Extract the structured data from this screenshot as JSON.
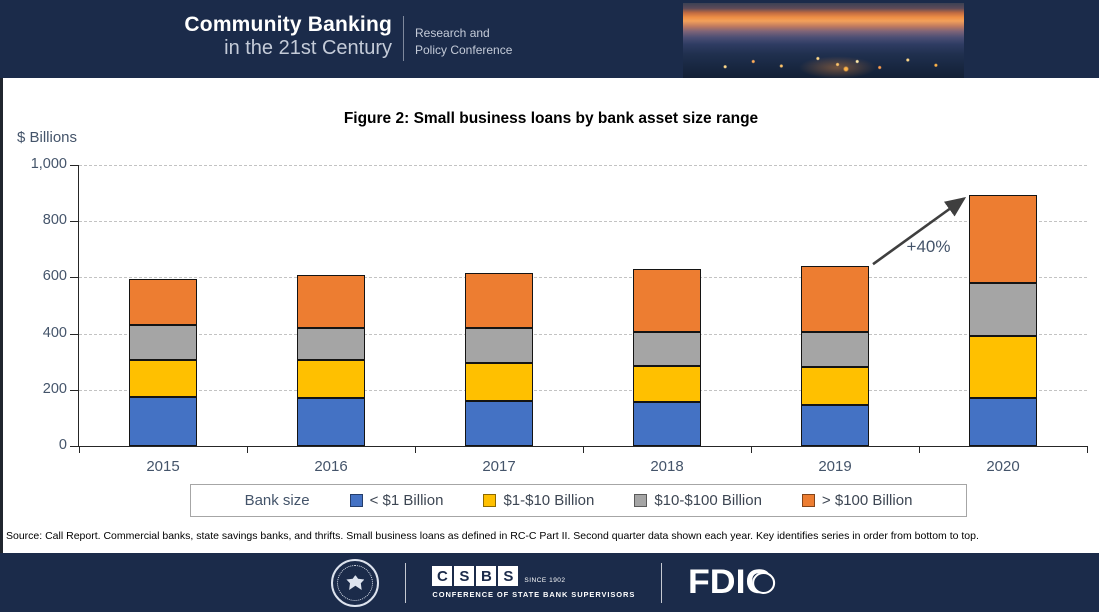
{
  "header": {
    "brand_title": "Community Banking",
    "brand_subtitle": "in the 21st Century",
    "conference_line1": "Research and",
    "conference_line2": "Policy Conference"
  },
  "chart_data": {
    "type": "bar",
    "stacked": true,
    "title": "Figure 2: Small business loans by bank asset size range",
    "ylabel": "$ Billions",
    "xlabel": "",
    "ylim": [
      0,
      1000
    ],
    "yticks": [
      "0",
      "200",
      "400",
      "600",
      "800",
      "1,000"
    ],
    "grid": "horizontal-dashed",
    "legend_position": "bottom",
    "legend_title": "Bank size",
    "categories": [
      "2015",
      "2016",
      "2017",
      "2018",
      "2019",
      "2020"
    ],
    "series": [
      {
        "name": "< $1 Billion",
        "color": "#4472C4",
        "values": [
          175,
          170,
          160,
          155,
          145,
          170
        ]
      },
      {
        "name": "$1-$10 Billion",
        "color": "#FFC000",
        "values": [
          130,
          135,
          135,
          130,
          135,
          220
        ]
      },
      {
        "name": "$10-$100 Billion",
        "color": "#A5A5A5",
        "values": [
          125,
          115,
          125,
          120,
          125,
          190
        ]
      },
      {
        "name": "> $100 Billion",
        "color": "#ED7D31",
        "values": [
          165,
          190,
          195,
          225,
          235,
          315
        ]
      }
    ],
    "totals": [
      595,
      610,
      615,
      630,
      640,
      895
    ],
    "annotation": {
      "text": "+40%",
      "from_index": 4,
      "to_index": 5,
      "arrow_color": "#3f3f3f"
    }
  },
  "source_note": "Source: Call Report. Commercial banks, state savings banks, and thrifts. Small business loans as defined in RC-C Part II. Second quarter data shown each year. Key identifies series in order from bottom to top.",
  "footer": {
    "csbs": {
      "letters": [
        "C",
        "S",
        "B",
        "S"
      ],
      "since": "SINCE 1902",
      "tagline": "CONFERENCE OF STATE BANK SUPERVISORS"
    },
    "fdic": "FDIC"
  },
  "colors": {
    "navy_band": "#1b2b4a",
    "axis_text": "#44546A",
    "gridline": "#c3c3c3",
    "bar_border": "#141414"
  }
}
